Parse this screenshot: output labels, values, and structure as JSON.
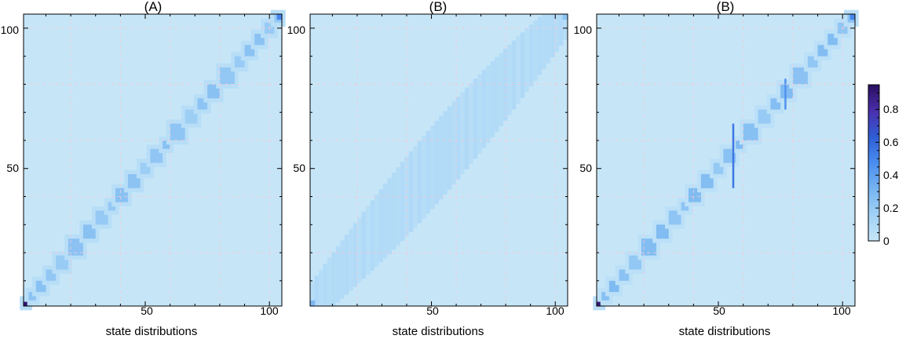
{
  "chart_data": [
    {
      "type": "heatmap",
      "title": "(A)",
      "xlabel": "state distributions",
      "ylabel": "",
      "xlim": [
        1,
        105
      ],
      "ylim": [
        1,
        105
      ],
      "xticks": [
        "50",
        "100"
      ],
      "yticks": [
        "50",
        "100"
      ],
      "grid": true,
      "pattern": {
        "kind": "diagonal-blocks",
        "start": 1,
        "end": 105,
        "blocks": [
          [
            1,
            3
          ],
          [
            3,
            6
          ],
          [
            6,
            10
          ],
          [
            10,
            14
          ],
          [
            14,
            19
          ],
          [
            19,
            25
          ],
          [
            25,
            30
          ],
          [
            30,
            35
          ],
          [
            35,
            38
          ],
          [
            38,
            43
          ],
          [
            43,
            48
          ],
          [
            48,
            52
          ],
          [
            52,
            57
          ],
          [
            57,
            60
          ],
          [
            60,
            66
          ],
          [
            66,
            71
          ],
          [
            71,
            75
          ],
          [
            75,
            80
          ],
          [
            80,
            86
          ],
          [
            86,
            90
          ],
          [
            90,
            94
          ],
          [
            94,
            98
          ],
          [
            98,
            102
          ],
          [
            102,
            105
          ]
        ],
        "block_value": 0.23,
        "edge_value": 0.06,
        "corner_value": 0.9
      }
    },
    {
      "type": "heatmap",
      "title": "(B)",
      "xlabel": "state distributions",
      "ylabel": "",
      "xlim": [
        1,
        105
      ],
      "ylim": [
        1,
        105
      ],
      "xticks": [
        "50",
        "100"
      ],
      "yticks": [
        "50",
        "100"
      ],
      "grid": true,
      "pattern": {
        "kind": "diffuse-band",
        "start": 1,
        "end": 105,
        "band_width": 14,
        "band_value": 0.1,
        "corner_value": 0.3
      }
    },
    {
      "type": "heatmap",
      "title": "(B)",
      "xlabel": "state distributions",
      "ylabel": "",
      "xlim": [
        1,
        105
      ],
      "ylim": [
        1,
        105
      ],
      "xticks": [
        "50",
        "100"
      ],
      "yticks": [
        "50",
        "100"
      ],
      "grid": true,
      "pattern": {
        "kind": "diagonal-blocks",
        "start": 1,
        "end": 105,
        "blocks": [
          [
            1,
            3
          ],
          [
            3,
            6
          ],
          [
            6,
            10
          ],
          [
            10,
            14
          ],
          [
            14,
            19
          ],
          [
            19,
            25
          ],
          [
            25,
            30
          ],
          [
            30,
            35
          ],
          [
            35,
            38
          ],
          [
            38,
            43
          ],
          [
            43,
            48
          ],
          [
            48,
            52
          ],
          [
            52,
            57
          ],
          [
            57,
            60
          ],
          [
            60,
            66
          ],
          [
            66,
            71
          ],
          [
            71,
            75
          ],
          [
            75,
            80
          ],
          [
            80,
            86
          ],
          [
            86,
            90
          ],
          [
            90,
            94
          ],
          [
            94,
            98
          ],
          [
            98,
            102
          ],
          [
            102,
            105
          ]
        ],
        "block_value": 0.26,
        "edge_value": 0.05,
        "corner_value": 0.9,
        "streaks": [
          {
            "x": 56,
            "from": 43,
            "to": 66,
            "value": 0.55
          },
          {
            "x": 77,
            "from": 71,
            "to": 82,
            "value": 0.45
          }
        ]
      }
    }
  ],
  "colorbar": {
    "min": 0,
    "max": 0.95,
    "tick_labels": [
      "0",
      "0.2",
      "0.4",
      "0.6",
      "0.8"
    ],
    "tick_values": [
      0,
      0.2,
      0.4,
      0.6,
      0.8
    ]
  },
  "colors": {
    "background_cell": "#c6e6f8",
    "colormap": [
      "#c6e6f8",
      "#a2d2f6",
      "#77b5f1",
      "#4a8df0",
      "#2f5fd6",
      "#4a2fae",
      "#2a0f5e"
    ],
    "grid_line": "#f2c9d8",
    "axis": "#000000"
  }
}
